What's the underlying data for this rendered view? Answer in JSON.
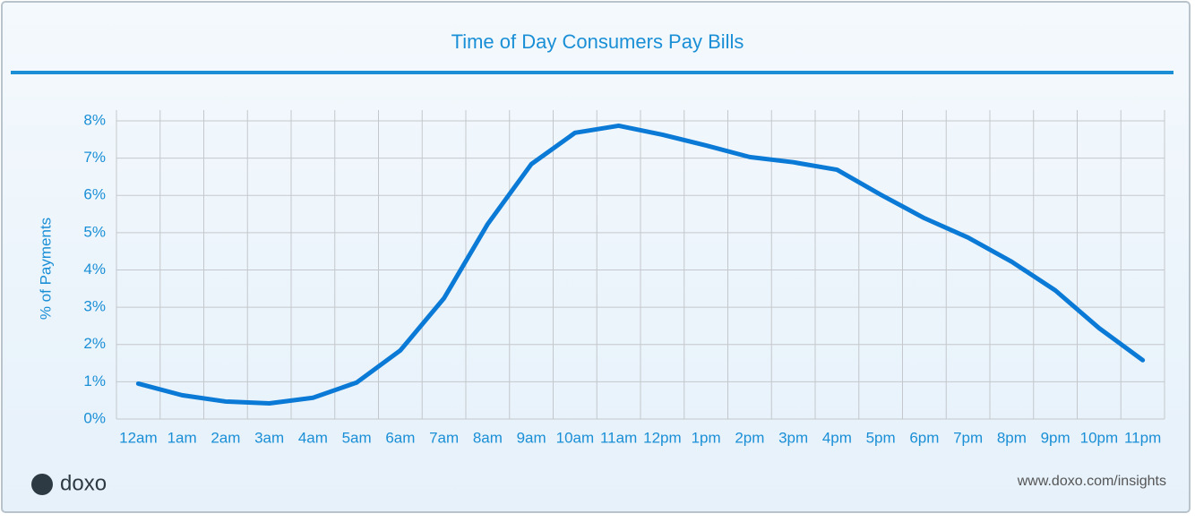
{
  "chart_data": {
    "type": "line",
    "title": "Time of Day Consumers Pay Bills",
    "y_label": "% of Payments",
    "categories": [
      "12am",
      "1am",
      "2am",
      "3am",
      "4am",
      "5am",
      "6am",
      "7am",
      "8am",
      "9am",
      "10am",
      "11am",
      "12pm",
      "1pm",
      "2pm",
      "3pm",
      "4pm",
      "5pm",
      "6pm",
      "7pm",
      "8pm",
      "9pm",
      "10pm",
      "11pm"
    ],
    "values": [
      0.95,
      0.64,
      0.47,
      0.42,
      0.57,
      0.98,
      1.84,
      3.24,
      5.23,
      6.84,
      7.68,
      7.87,
      7.63,
      7.34,
      7.03,
      6.89,
      6.69,
      6.02,
      5.39,
      4.87,
      4.22,
      3.45,
      2.44,
      1.58
    ],
    "color": "#0a7ad6",
    "ylim": [
      0,
      8
    ],
    "yticks": [
      {
        "value": 0,
        "label": "0%"
      },
      {
        "value": 1,
        "label": "1%"
      },
      {
        "value": 2,
        "label": "2%"
      },
      {
        "value": 3,
        "label": "3%"
      },
      {
        "value": 4,
        "label": "4%"
      },
      {
        "value": 5,
        "label": "5%"
      },
      {
        "value": 6,
        "label": "6%"
      },
      {
        "value": 7,
        "label": "7%"
      },
      {
        "value": 8,
        "label": "8%"
      }
    ],
    "grid": true
  },
  "logo": "doxo",
  "source": "www.doxo.com/insights"
}
